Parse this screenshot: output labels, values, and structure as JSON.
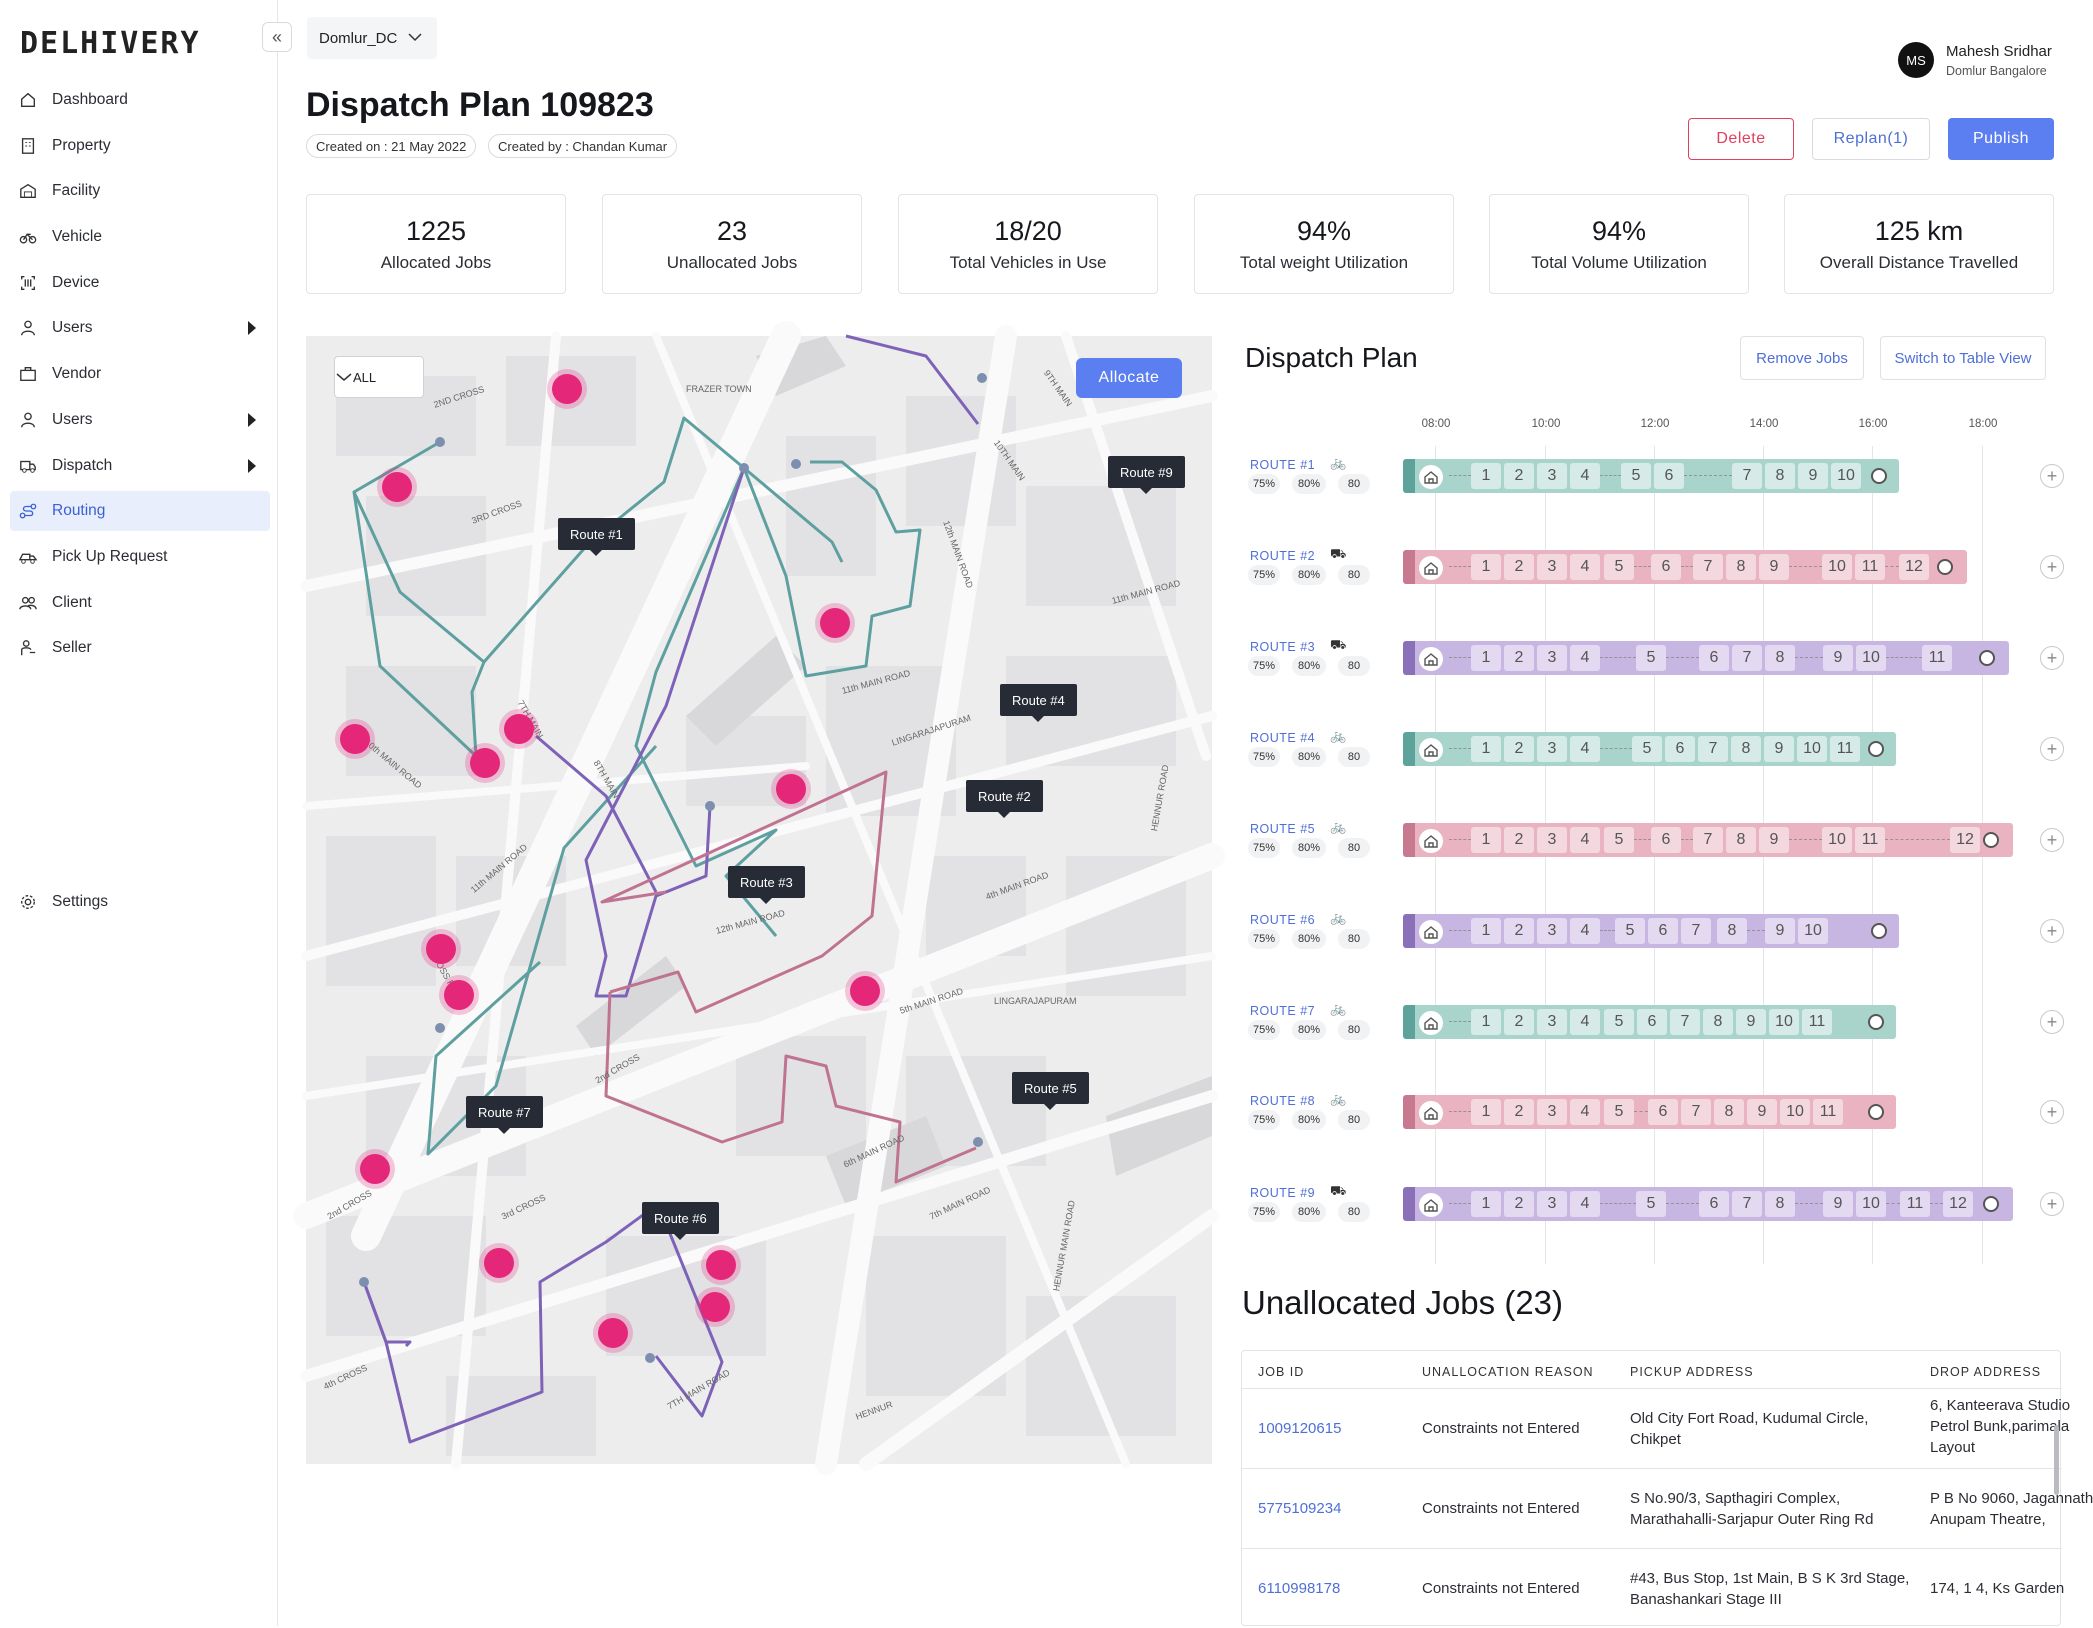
{
  "brand": "DELHIVERY",
  "nav": [
    {
      "label": "Dashboard",
      "icon": "home-icon",
      "caret": false
    },
    {
      "label": "Property",
      "icon": "building-icon",
      "caret": false
    },
    {
      "label": "Facility",
      "icon": "warehouse-icon",
      "caret": false
    },
    {
      "label": "Vehicle",
      "icon": "bike-icon",
      "caret": false
    },
    {
      "label": "Device",
      "icon": "scanner-icon",
      "caret": false
    },
    {
      "label": "Users",
      "icon": "user-icon",
      "caret": true
    },
    {
      "label": "Vendor",
      "icon": "briefcase-icon",
      "caret": false
    },
    {
      "label": "Users",
      "icon": "user-icon",
      "caret": true
    },
    {
      "label": "Dispatch",
      "icon": "truck-icon",
      "caret": true
    },
    {
      "label": "Routing",
      "icon": "route-icon",
      "caret": false,
      "active": true
    },
    {
      "label": "Pick Up Request",
      "icon": "pickup-truck-icon",
      "caret": false
    },
    {
      "label": "Client",
      "icon": "users-icon",
      "caret": false
    },
    {
      "label": "Seller",
      "icon": "seller-icon",
      "caret": false
    }
  ],
  "settings_label": "Settings",
  "dc_select": "Domlur_DC",
  "title": "Dispatch Plan 109823",
  "created_on": "Created on : 21 May 2022",
  "created_by": "Created by : Chandan Kumar",
  "user": {
    "initials": "MS",
    "name": "Mahesh Sridhar",
    "location": "Domlur Bangalore"
  },
  "actions": {
    "delete": "Delete",
    "replan": "Replan(1)",
    "publish": "Publish"
  },
  "stats": [
    {
      "value": "1225",
      "label": "Allocated Jobs"
    },
    {
      "value": "23",
      "label": "Unallocated Jobs"
    },
    {
      "value": "18/20",
      "label": "Total Vehicles in Use"
    },
    {
      "value": "94%",
      "label": "Total weight Utilization"
    },
    {
      "value": "94%",
      "label": "Total Volume Utilization"
    },
    {
      "value": "125 km",
      "label": "Overall Distance Travelled"
    }
  ],
  "map": {
    "filter": "ALL",
    "allocate": "Allocate",
    "route_tags": [
      "Route #1",
      "Route #9",
      "Route #4",
      "Route #2",
      "Route #3",
      "Route #5",
      "Route #7",
      "Route #6"
    ],
    "streets": [
      "2ND CROSS",
      "FRAZER TOWN",
      "3RD CROSS",
      "9TH MAIN",
      "10TH MAIN",
      "12th MAIN ROAD",
      "11th MAIN ROAD",
      "11th MAIN ROAD",
      "LINGARAJAPURAM",
      "10th MAIN ROAD",
      "7TH MAIN",
      "8TH MAIN",
      "11th MAIN ROAD",
      "CROSS ROAD",
      "12th MAIN ROAD",
      "4th MAIN ROAD",
      "5th MAIN ROAD",
      "LINGARAJAPURAM",
      "2nd CROSS",
      "2nd CROSS",
      "3rd CROSS",
      "6th MAIN ROAD",
      "7th MAIN ROAD",
      "HENNUR MAIN ROAD",
      "4th CROSS",
      "7TH MAIN ROAD",
      "HENNUR",
      "HENNUR ROAD"
    ]
  },
  "dispatch": {
    "title": "Dispatch Plan",
    "remove_jobs": "Remove Jobs",
    "switch_view": "Switch to Table View",
    "times": [
      "08:00",
      "10:00",
      "12:00",
      "14:00",
      "16:00",
      "18:00"
    ],
    "routes": [
      {
        "label": "ROUTE #1",
        "vehicle": "bike",
        "w": "75%",
        "v": "80%",
        "n": "80",
        "theme": "teal",
        "stops": [
          "1",
          "2",
          "3",
          "4",
          "5",
          "6",
          "7",
          "8",
          "9",
          "10"
        ]
      },
      {
        "label": "ROUTE #2",
        "vehicle": "truck",
        "w": "75%",
        "v": "80%",
        "n": "80",
        "theme": "pink",
        "stops": [
          "1",
          "2",
          "3",
          "4",
          "5",
          "6",
          "7",
          "8",
          "9",
          "10",
          "11",
          "12"
        ]
      },
      {
        "label": "ROUTE #3",
        "vehicle": "truck",
        "w": "75%",
        "v": "80%",
        "n": "80",
        "theme": "purple",
        "stops": [
          "1",
          "2",
          "3",
          "4",
          "5",
          "6",
          "7",
          "8",
          "9",
          "10",
          "11"
        ]
      },
      {
        "label": "ROUTE #4",
        "vehicle": "bike",
        "w": "75%",
        "v": "80%",
        "n": "80",
        "theme": "teal",
        "stops": [
          "1",
          "2",
          "3",
          "4",
          "5",
          "6",
          "7",
          "8",
          "9",
          "10",
          "11"
        ]
      },
      {
        "label": "ROUTE #5",
        "vehicle": "bike",
        "w": "75%",
        "v": "80%",
        "n": "80",
        "theme": "pink",
        "stops": [
          "1",
          "2",
          "3",
          "4",
          "5",
          "6",
          "7",
          "8",
          "9",
          "10",
          "11",
          "12"
        ]
      },
      {
        "label": "ROUTE #6",
        "vehicle": "bike",
        "w": "75%",
        "v": "80%",
        "n": "80",
        "theme": "purple",
        "stops": [
          "1",
          "2",
          "3",
          "4",
          "5",
          "6",
          "7",
          "8",
          "9",
          "10"
        ]
      },
      {
        "label": "ROUTE #7",
        "vehicle": "bike",
        "w": "75%",
        "v": "80%",
        "n": "80",
        "theme": "teal",
        "stops": [
          "1",
          "2",
          "3",
          "4",
          "5",
          "6",
          "7",
          "8",
          "9",
          "10",
          "11"
        ]
      },
      {
        "label": "ROUTE #8",
        "vehicle": "bike",
        "w": "75%",
        "v": "80%",
        "n": "80",
        "theme": "pink",
        "stops": [
          "1",
          "2",
          "3",
          "4",
          "5",
          "6",
          "7",
          "8",
          "9",
          "10",
          "11"
        ]
      },
      {
        "label": "ROUTE #9",
        "vehicle": "truck",
        "w": "75%",
        "v": "80%",
        "n": "80",
        "theme": "purple",
        "stops": [
          "1",
          "2",
          "3",
          "4",
          "5",
          "6",
          "7",
          "8",
          "9",
          "10",
          "11",
          "12"
        ]
      }
    ]
  },
  "unallocated": {
    "title": "Unallocated Jobs (23)",
    "columns": [
      "JOB ID",
      "UNALLOCATION REASON",
      "PICKUP ADDRESS",
      "DROP ADDRESS"
    ],
    "rows": [
      {
        "id": "1009120615",
        "reason": "Constraints not Entered",
        "pickup": [
          "Old City Fort Road, Kudumal Circle,",
          "Chikpet"
        ],
        "drop": [
          "6, Kanteerava Studio",
          "Petrol Bunk,parimala",
          "Layout"
        ]
      },
      {
        "id": "5775109234",
        "reason": "Constraints not Entered",
        "pickup": [
          " S No.90/3, Sapthagiri Complex,",
          "Marathahalli-Sarjapur Outer Ring Rd"
        ],
        "drop": [
          "P B No 9060, Jagannath",
          "Anupam Theatre,"
        ]
      },
      {
        "id": "6110998178",
        "reason": "Constraints not Entered",
        "pickup": [
          "#43, Bus Stop, 1st Main, B S K 3rd Stage,",
          " Banashankari Stage III"
        ],
        "drop": [
          "174, 1 4, Ks Garden"
        ]
      }
    ]
  },
  "colors": {
    "teal": "#5ea39b",
    "pink": "#c77a8f",
    "purple": "#8a70b8",
    "accent": "#5b7ef0",
    "pin": "#e5277a"
  }
}
